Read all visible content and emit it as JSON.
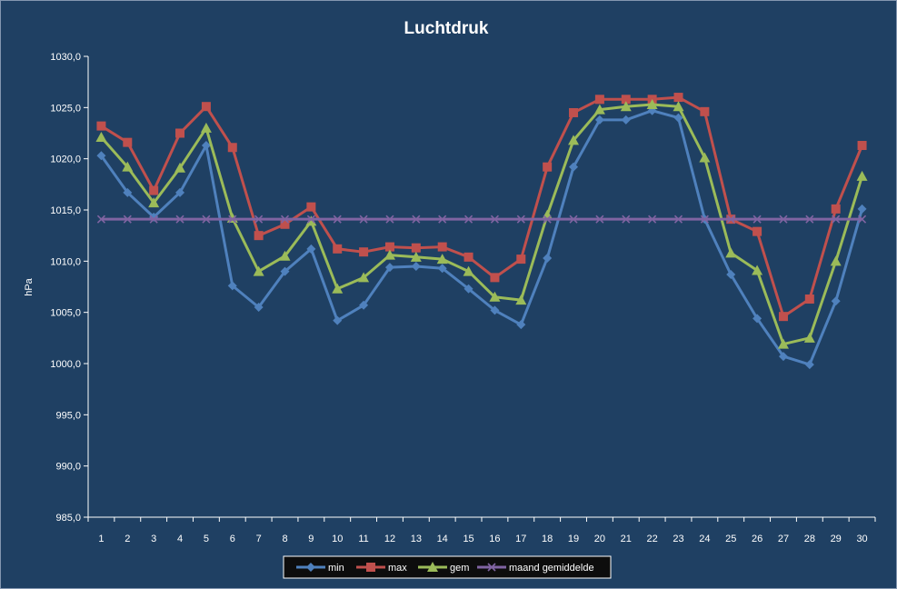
{
  "chart_data": {
    "type": "line",
    "title": "Luchtdruk",
    "xlabel": "",
    "ylabel": "hPa",
    "ylim": [
      985,
      1030
    ],
    "ytick_step": 5,
    "ytick_format": "comma-1",
    "grid": false,
    "legend_position": "bottom",
    "background_color": "#1f4063",
    "categories": [
      "1",
      "2",
      "3",
      "4",
      "5",
      "6",
      "7",
      "8",
      "9",
      "10",
      "11",
      "12",
      "13",
      "14",
      "15",
      "16",
      "17",
      "18",
      "19",
      "20",
      "21",
      "22",
      "23",
      "24",
      "25",
      "26",
      "27",
      "28",
      "29",
      "30"
    ],
    "series": [
      {
        "name": "min",
        "color": "#4f81bd",
        "marker": "diamond",
        "values": [
          1020.3,
          1016.7,
          1014.3,
          1016.7,
          1021.3,
          1007.6,
          1005.5,
          1009.0,
          1011.2,
          1004.2,
          1005.7,
          1009.4,
          1009.5,
          1009.3,
          1007.3,
          1005.2,
          1003.8,
          1010.3,
          1019.2,
          1023.8,
          1023.8,
          1024.7,
          1024.0,
          1014.1,
          1008.7,
          1004.4,
          1000.7,
          999.9,
          1006.1,
          1015.1
        ]
      },
      {
        "name": "max",
        "color": "#c0504d",
        "marker": "square",
        "values": [
          1023.2,
          1021.6,
          1016.9,
          1022.5,
          1025.1,
          1021.1,
          1012.5,
          1013.6,
          1015.3,
          1011.2,
          1010.9,
          1011.4,
          1011.3,
          1011.4,
          1010.4,
          1008.4,
          1010.2,
          1019.2,
          1024.5,
          1025.8,
          1025.8,
          1025.8,
          1026.0,
          1024.6,
          1014.1,
          1012.9,
          1004.6,
          1006.3,
          1015.1,
          1021.3
        ]
      },
      {
        "name": "gem",
        "color": "#9bbb59",
        "marker": "triangle",
        "values": [
          1022.1,
          1019.2,
          1015.7,
          1019.1,
          1023.0,
          1014.2,
          1009.0,
          1010.5,
          1013.9,
          1007.3,
          1008.4,
          1010.6,
          1010.4,
          1010.2,
          1009.0,
          1006.5,
          1006.2,
          1014.5,
          1021.8,
          1024.8,
          1025.1,
          1025.3,
          1025.1,
          1020.1,
          1010.8,
          1009.1,
          1001.9,
          1002.5,
          1010.0,
          1018.3
        ]
      },
      {
        "name": "maand gemiddelde",
        "color": "#8064a2",
        "marker": "x",
        "values": [
          1014.1,
          1014.1,
          1014.1,
          1014.1,
          1014.1,
          1014.1,
          1014.1,
          1014.1,
          1014.1,
          1014.1,
          1014.1,
          1014.1,
          1014.1,
          1014.1,
          1014.1,
          1014.1,
          1014.1,
          1014.1,
          1014.1,
          1014.1,
          1014.1,
          1014.1,
          1014.1,
          1014.1,
          1014.1,
          1014.1,
          1014.1,
          1014.1,
          1014.1,
          1014.1
        ]
      }
    ]
  }
}
